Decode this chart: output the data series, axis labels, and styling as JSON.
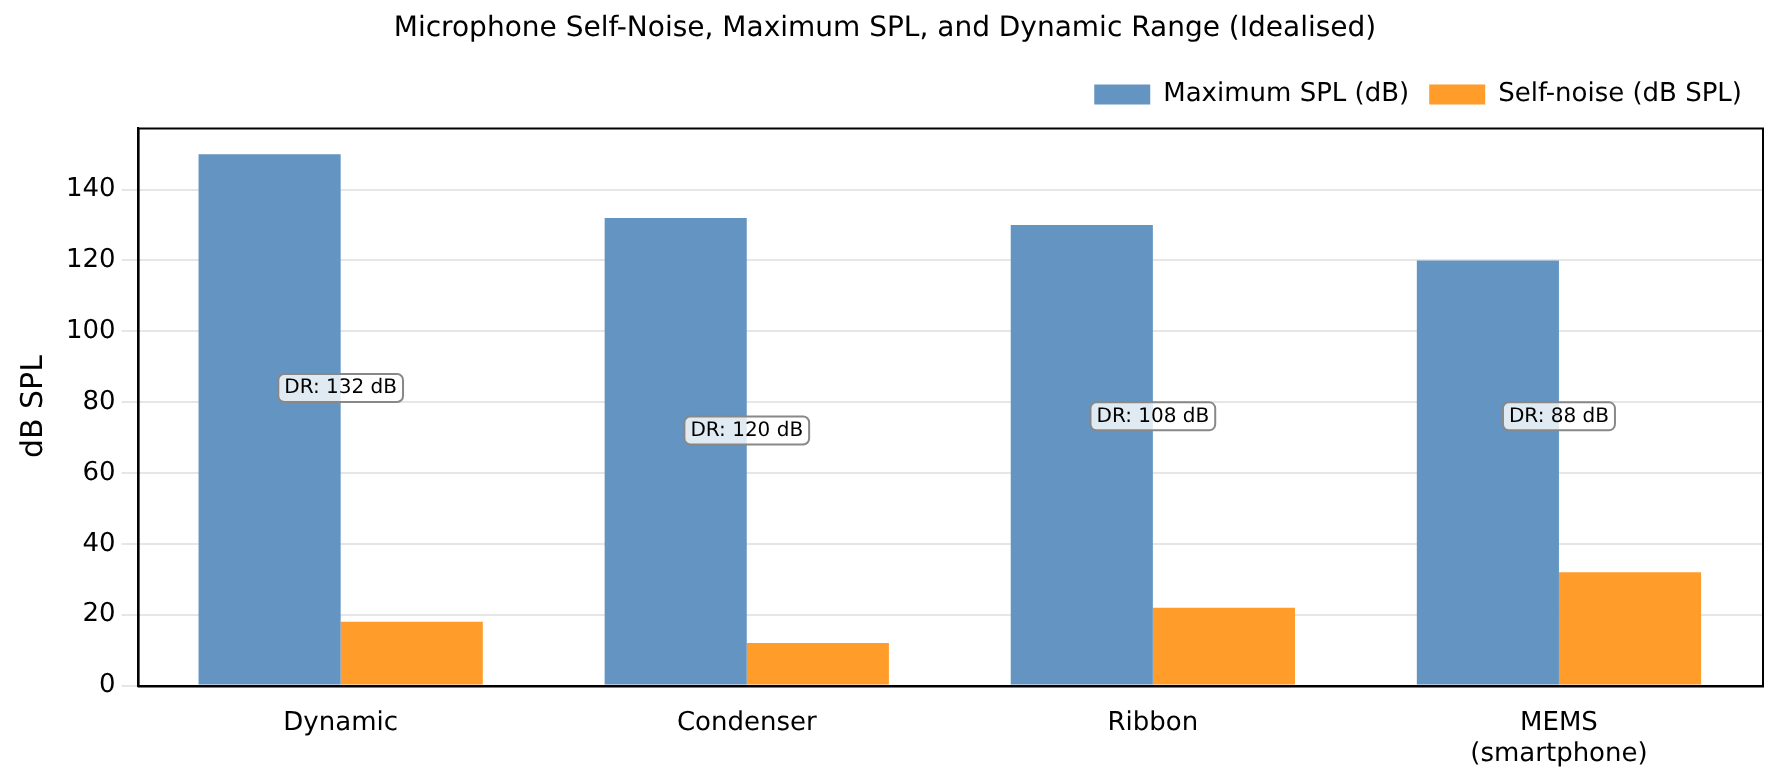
{
  "chart_data": {
    "type": "bar",
    "title": "Microphone Self-Noise, Maximum SPL, and Dynamic Range (Idealised)",
    "ylabel": "dB SPL",
    "categories": [
      "Dynamic",
      "Condenser",
      "Ribbon",
      "MEMS\n(smartphone)"
    ],
    "series": [
      {
        "name": "Maximum SPL (dB)",
        "color": "#6495c2",
        "values": [
          150,
          132,
          130,
          120
        ]
      },
      {
        "name": "Self-noise (dB SPL)",
        "color": "#ff9c2a",
        "values": [
          18,
          12,
          22,
          32
        ]
      }
    ],
    "ylim": [
      0,
      157.5
    ],
    "yticks": [
      0,
      20,
      40,
      60,
      80,
      100,
      120,
      140
    ],
    "grid": "y",
    "legend": "top right",
    "annotations": [
      {
        "text": "DR: 132 dB",
        "x": "Dynamic",
        "y": 84
      },
      {
        "text": "DR: 120 dB",
        "x": "Condenser",
        "y": 72
      },
      {
        "text": "DR: 108 dB",
        "x": "Ribbon",
        "y": 76
      },
      {
        "text": "DR: 88 dB",
        "x": "MEMS\n(smartphone)",
        "y": 76
      }
    ]
  }
}
